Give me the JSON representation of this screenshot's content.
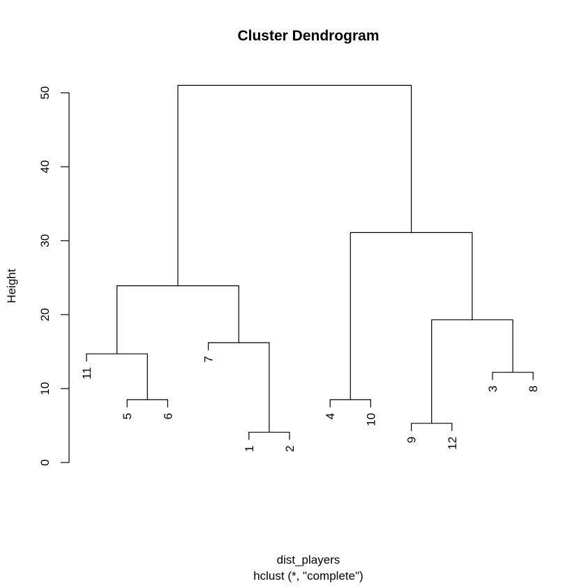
{
  "chart_data": {
    "type": "dendrogram",
    "title": "Cluster Dendrogram",
    "xlabel": "dist_players",
    "sublabel": "hclust (*, \"complete\")",
    "ylabel": "Height",
    "ylim": [
      0,
      52
    ],
    "yticks": [
      0,
      10,
      20,
      30,
      40,
      50
    ],
    "leaf_order": [
      "11",
      "5",
      "6",
      "7",
      "1",
      "2",
      "4",
      "10",
      "9",
      "12",
      "3",
      "8"
    ],
    "merges": [
      {
        "left": "1",
        "right": "2",
        "height": 4.1
      },
      {
        "left": "9",
        "right": "12",
        "height": 5.3
      },
      {
        "left": "5",
        "right": "6",
        "height": 8.5
      },
      {
        "left": "4",
        "right": "10",
        "height": 8.5
      },
      {
        "left": "3",
        "right": "8",
        "height": 12.2
      },
      {
        "left": "11",
        "right": "5,6",
        "height": 14.7
      },
      {
        "left": "7",
        "right": "1,2",
        "height": 16.2
      },
      {
        "left": "9,12",
        "right": "3,8",
        "height": 19.3
      },
      {
        "left": "11,5,6",
        "right": "7,1,2",
        "height": 23.9
      },
      {
        "left": "4,10",
        "right": "9,12,3,8",
        "height": 31.1
      },
      {
        "left": "11,5,6,7,1,2",
        "right": "4,10,9,12,3,8",
        "height": 51.0
      }
    ]
  }
}
